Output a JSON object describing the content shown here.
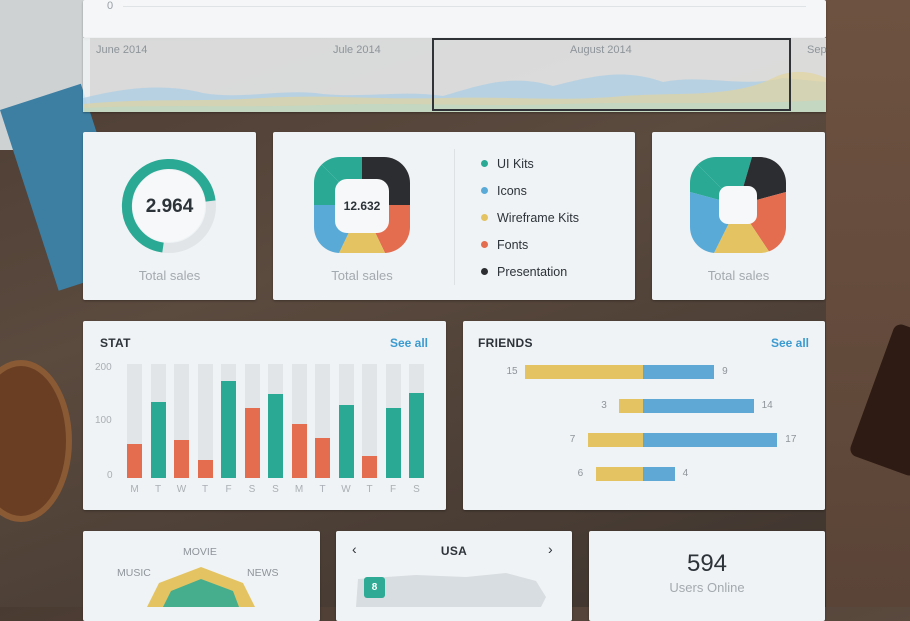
{
  "timeline": {
    "zero_tick": "0",
    "months": [
      "June 2014",
      "Jule 2014",
      "August 2014",
      "Sep"
    ]
  },
  "cards": {
    "card1": {
      "value": "2.964",
      "caption": "Total sales"
    },
    "card2": {
      "value": "12.632",
      "caption": "Total sales"
    },
    "card3": {
      "caption": "Total sales"
    }
  },
  "legend": [
    {
      "label": "UI Kits",
      "color": "#2aa995"
    },
    {
      "label": "Icons",
      "color": "#5aaad8"
    },
    {
      "label": "Wireframe Kits",
      "color": "#e4c462"
    },
    {
      "label": "Fonts",
      "color": "#e46c4f"
    },
    {
      "label": "Presentation",
      "color": "#2b2d30"
    }
  ],
  "stat": {
    "title": "STAT",
    "see_all": "See all",
    "y_ticks": [
      "200",
      "100",
      "0"
    ]
  },
  "friends": {
    "title": "FRIENDS",
    "see_all": "See all"
  },
  "chart_data": [
    {
      "type": "bar",
      "title": "STAT",
      "categories": [
        "M",
        "T",
        "W",
        "T",
        "F",
        "S",
        "S",
        "M",
        "T",
        "W",
        "T",
        "F",
        "S"
      ],
      "values": [
        60,
        134,
        66,
        32,
        170,
        122,
        148,
        94,
        70,
        128,
        38,
        122,
        150
      ],
      "bar_colors": [
        "#e46c4f",
        "#2aa995",
        "#e46c4f",
        "#e46c4f",
        "#2aa995",
        "#e46c4f",
        "#2aa995",
        "#e46c4f",
        "#e46c4f",
        "#2aa995",
        "#e46c4f",
        "#2aa995",
        "#2aa995"
      ],
      "ylim": [
        0,
        200
      ],
      "y_ticks": [
        0,
        100,
        200
      ]
    },
    {
      "type": "bar",
      "title": "FRIENDS",
      "orientation": "horizontal-diverging",
      "rows": [
        {
          "left": 15,
          "right": 9
        },
        {
          "left": 3,
          "right": 14
        },
        {
          "left": 7,
          "right": 17
        },
        {
          "left": 6,
          "right": 4
        }
      ],
      "colors": {
        "left": "#e4c363",
        "right": "#5fa8d6"
      }
    }
  ],
  "radar": {
    "labels": [
      "MOVIE",
      "MUSIC",
      "NEWS"
    ]
  },
  "map": {
    "title": "USA",
    "prev": "‹",
    "next": "›",
    "badge": "8"
  },
  "online": {
    "count": "594",
    "label": "Users Online"
  }
}
